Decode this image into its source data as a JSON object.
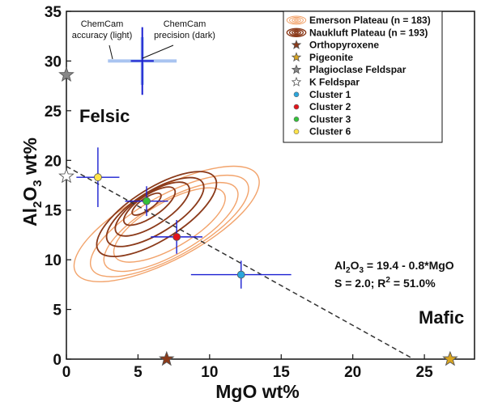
{
  "chart_data": {
    "type": "scatter",
    "xlabel": "MgO wt%",
    "ylabel_parts": {
      "a": "Al",
      "b": "2",
      "c": "O",
      "d": "3",
      "e": " wt%"
    },
    "xlim": [
      0,
      28.5
    ],
    "ylim": [
      0,
      35
    ],
    "xticks": [
      "0",
      "5",
      "10",
      "15",
      "20",
      "25"
    ],
    "yticks": [
      "0",
      "5",
      "10",
      "15",
      "20",
      "25",
      "30",
      "35"
    ],
    "xtick_values": [
      0,
      5,
      10,
      15,
      20,
      25
    ],
    "ytick_values": [
      0,
      5,
      10,
      15,
      20,
      25,
      30,
      35
    ],
    "grid": false,
    "legend_position": "top-right",
    "legend": [
      {
        "label": "Emerson Plateau (n = 183)",
        "icon": "contour-light-icon",
        "color": "#f2a36b"
      },
      {
        "label": "Naukluft Plateau (n = 193)",
        "icon": "contour-dark-icon",
        "color": "#8b3a1a"
      },
      {
        "label": "Orthopyroxene",
        "icon": "star-icon",
        "color": "#8b3a1a"
      },
      {
        "label": "Pigeonite",
        "icon": "star-icon",
        "color": "#d9a520"
      },
      {
        "label": "Plagioclase Feldspar",
        "icon": "star-icon",
        "color": "#888888"
      },
      {
        "label": "K Feldspar",
        "icon": "star-icon",
        "color": "#ffffff"
      },
      {
        "label": "Cluster 1",
        "icon": "dot-icon",
        "color": "#2ba6dc"
      },
      {
        "label": "Cluster 2",
        "icon": "dot-icon",
        "color": "#e3141b"
      },
      {
        "label": "Cluster 3",
        "icon": "dot-icon",
        "color": "#33c13a"
      },
      {
        "label": "Cluster 6",
        "icon": "dot-icon",
        "color": "#ffe34a"
      }
    ],
    "minerals": [
      {
        "name": "Orthopyroxene",
        "x": 7.0,
        "y": 0.0,
        "color": "#8b3a1a"
      },
      {
        "name": "Pigeonite",
        "x": 26.8,
        "y": 0.0,
        "color": "#d9a520"
      },
      {
        "name": "Plagioclase Feldspar",
        "x": 0.0,
        "y": 28.6,
        "color": "#888888"
      },
      {
        "name": "K Feldspar",
        "x": 0.0,
        "y": 18.4,
        "color": "#ffffff"
      }
    ],
    "clusters": [
      {
        "name": "Cluster 1",
        "x": 12.2,
        "y": 8.5,
        "xerr": 3.5,
        "yerr": 1.4,
        "color": "#2ba6dc"
      },
      {
        "name": "Cluster 2",
        "x": 7.7,
        "y": 12.3,
        "xerr": 1.8,
        "yerr": 1.7,
        "color": "#e3141b"
      },
      {
        "name": "Cluster 3",
        "x": 5.6,
        "y": 15.9,
        "xerr": 1.5,
        "yerr": 1.5,
        "color": "#33c13a"
      },
      {
        "name": "Cluster 6",
        "x": 2.2,
        "y": 18.3,
        "xerr": 1.5,
        "yerr": 3.0,
        "color": "#ffe34a"
      }
    ],
    "fit_line": {
      "intercept": 19.4,
      "slope": -0.8,
      "x_from": 0,
      "x_to": 24.25
    },
    "fit_text": {
      "eq_a": "Al",
      "eq_b": "2",
      "eq_c": "O",
      "eq_d": "3",
      "eq_e": " = 19.4 - 0.8*MgO",
      "stats_a": "S = 2.0; R",
      "stats_b": "2",
      "stats_c": " = 51.0%"
    },
    "precision_marker": {
      "x": 5.3,
      "y": 30.0,
      "accuracy_xerr": 2.4,
      "accuracy_yerr": 2.4,
      "precision_xerr": 0.8,
      "precision_yerr": 3.4,
      "light_color": "#a9c4f0",
      "dark_color": "#1a1fd1"
    },
    "annotations": {
      "accuracy_line1": "ChemCam",
      "accuracy_line2": "accuracy (light)",
      "precision_line1": "ChemCam",
      "precision_line2": "precision (dark)",
      "felsic": "Felsic",
      "mafic": "Mafic"
    },
    "contours": {
      "light_color": "#f2a36b",
      "dark_color": "#8b3a1a",
      "light_levels": [
        {
          "cx": 7.0,
          "cy": 13.6,
          "rx": 7.2,
          "ry": 3.6,
          "angle": -28
        },
        {
          "cx": 7.2,
          "cy": 13.4,
          "rx": 6.2,
          "ry": 3.1,
          "angle": -29
        },
        {
          "cx": 7.3,
          "cy": 13.3,
          "rx": 5.3,
          "ry": 2.7,
          "angle": -30
        },
        {
          "cx": 7.2,
          "cy": 13.5,
          "rx": 4.4,
          "ry": 2.3,
          "angle": -30
        }
      ],
      "dark_levels": [
        {
          "cx": 6.3,
          "cy": 14.6,
          "rx": 4.8,
          "ry": 2.6,
          "angle": -32
        },
        {
          "cx": 6.2,
          "cy": 14.8,
          "rx": 3.9,
          "ry": 2.1,
          "angle": -32
        },
        {
          "cx": 6.0,
          "cy": 15.1,
          "rx": 3.0,
          "ry": 1.6,
          "angle": -33
        },
        {
          "cx": 5.8,
          "cy": 15.4,
          "rx": 2.1,
          "ry": 1.1,
          "angle": -34
        },
        {
          "cx": 5.6,
          "cy": 15.6,
          "rx": 1.2,
          "ry": 0.6,
          "angle": -35
        }
      ]
    }
  }
}
